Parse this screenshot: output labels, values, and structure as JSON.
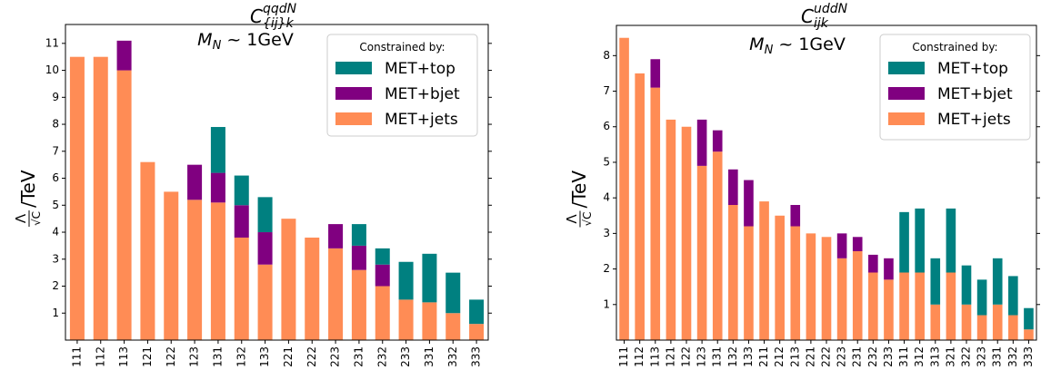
{
  "colors": {
    "top": "#008080",
    "bjet": "#800080",
    "jets": "#ff8c55"
  },
  "chart_data": [
    {
      "type": "bar",
      "stacked": true,
      "title_main": "C",
      "title_sup": "qqdN",
      "title_sub": "{ij}k",
      "annotation": "M_N ~ 1GeV",
      "ylabel": "Λ/√C /TeV",
      "ylim": [
        0,
        11.7
      ],
      "yticks": [
        1,
        2,
        3,
        4,
        5,
        6,
        7,
        8,
        9,
        10,
        11
      ],
      "legend_title": "Constrained by:",
      "legend_placement": "top-right",
      "categories": [
        "111",
        "112",
        "113",
        "121",
        "122",
        "123",
        "131",
        "132",
        "133",
        "221",
        "222",
        "223",
        "231",
        "232",
        "233",
        "331",
        "332",
        "333"
      ],
      "series": [
        {
          "name": "MET+jets",
          "key": "jets",
          "values": [
            10.5,
            10.5,
            10.0,
            6.6,
            5.5,
            5.2,
            5.1,
            3.8,
            2.8,
            4.5,
            3.8,
            3.4,
            2.6,
            2.0,
            1.5,
            1.4,
            1.0,
            0.6
          ]
        },
        {
          "name": "MET+bjet",
          "key": "bjet",
          "values": [
            0,
            0,
            1.1,
            0,
            0,
            1.3,
            1.1,
            1.2,
            1.2,
            0,
            0,
            0.9,
            0.9,
            0.8,
            0,
            0,
            0,
            0
          ]
        },
        {
          "name": "MET+top",
          "key": "top",
          "values": [
            0,
            0,
            0,
            0,
            0,
            0,
            1.7,
            1.1,
            1.3,
            0,
            0,
            0,
            0.8,
            0.6,
            1.4,
            1.8,
            1.5,
            0.9
          ]
        }
      ]
    },
    {
      "type": "bar",
      "stacked": true,
      "title_main": "C",
      "title_sup": "uddN",
      "title_sub": "ijk",
      "annotation": "M_N ~ 1GeV",
      "ylabel": "Λ/√C /TeV",
      "ylim": [
        0,
        8.85
      ],
      "yticks": [
        1,
        2,
        3,
        4,
        5,
        6,
        7,
        8
      ],
      "legend_title": "Constrained by:",
      "legend_placement": "top-right",
      "categories": [
        "111",
        "112",
        "113",
        "121",
        "122",
        "123",
        "131",
        "132",
        "133",
        "211",
        "212",
        "213",
        "221",
        "222",
        "223",
        "231",
        "232",
        "233",
        "311",
        "312",
        "313",
        "321",
        "322",
        "323",
        "331",
        "332",
        "333"
      ],
      "series": [
        {
          "name": "MET+jets",
          "key": "jets",
          "values": [
            8.5,
            7.5,
            7.1,
            6.2,
            6.0,
            4.9,
            5.3,
            3.8,
            3.2,
            3.9,
            3.5,
            3.2,
            3.0,
            2.9,
            2.3,
            2.5,
            1.9,
            1.7,
            1.9,
            1.9,
            1.0,
            1.9,
            1.0,
            0.7,
            1.0,
            0.7,
            0.3
          ]
        },
        {
          "name": "MET+bjet",
          "key": "bjet",
          "values": [
            0,
            0,
            0.8,
            0,
            0,
            1.3,
            0.6,
            1.0,
            1.3,
            0,
            0,
            0.6,
            0,
            0,
            0.7,
            0.4,
            0.5,
            0.6,
            0,
            0,
            0,
            0,
            0,
            0,
            0,
            0,
            0
          ]
        },
        {
          "name": "MET+top",
          "key": "top",
          "values": [
            0,
            0,
            0,
            0,
            0,
            0,
            0,
            0,
            0,
            0,
            0,
            0,
            0,
            0,
            0,
            0,
            0,
            0,
            1.7,
            1.8,
            1.3,
            1.8,
            1.1,
            1.0,
            1.3,
            1.1,
            0.6
          ]
        }
      ]
    }
  ]
}
